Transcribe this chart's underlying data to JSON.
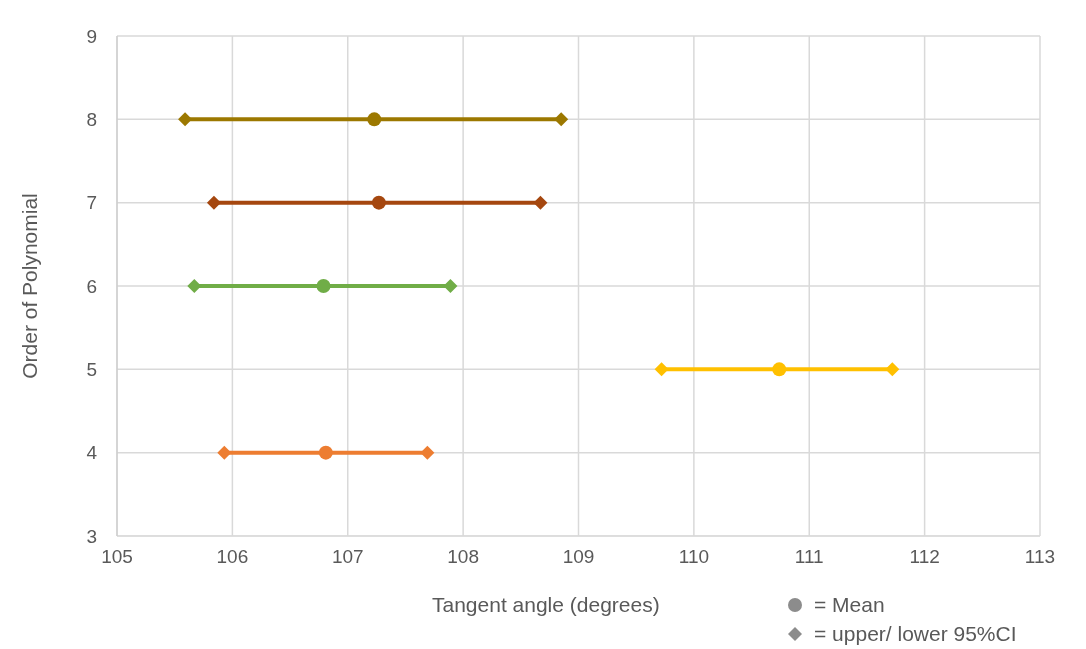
{
  "chart_data": {
    "type": "line",
    "xlabel": "Tangent angle (degrees)",
    "ylabel": "Order of Polynomial",
    "xlim": [
      105,
      113
    ],
    "xticks": [
      105,
      106,
      107,
      108,
      109,
      110,
      111,
      112,
      113
    ],
    "ylim": [
      3,
      9
    ],
    "yticks": [
      3,
      4,
      5,
      6,
      7,
      8,
      9
    ],
    "grid": true,
    "marker": "diamond",
    "series": [
      {
        "color": "#9c7800",
        "x": [
          105.59,
          108.85
        ],
        "values": [
          8,
          8
        ]
      },
      {
        "color": "#a5470f",
        "x": [
          105.84,
          108.67
        ],
        "values": [
          7,
          7
        ]
      },
      {
        "color": "#70ad47",
        "x": [
          105.67,
          107.89
        ],
        "values": [
          6,
          6
        ]
      },
      {
        "color": "#ffc000",
        "x": [
          109.72,
          111.72
        ],
        "values": [
          5,
          5
        ]
      },
      {
        "color": "#ed7d31",
        "x": [
          105.93,
          107.69
        ],
        "values": [
          4,
          4
        ]
      },
      {
        "type": "scatter",
        "marker": "circle",
        "color": "#9c7800",
        "x": [
          107.23
        ],
        "values": [
          8
        ]
      },
      {
        "type": "scatter",
        "marker": "circle",
        "color": "#a5470f",
        "x": [
          107.27
        ],
        "values": [
          7
        ]
      },
      {
        "type": "scatter",
        "marker": "circle",
        "color": "#70ad47",
        "x": [
          106.79
        ],
        "values": [
          6
        ]
      },
      {
        "type": "scatter",
        "marker": "circle",
        "color": "#ffc000",
        "x": [
          110.74
        ],
        "values": [
          5
        ]
      },
      {
        "type": "scatter",
        "marker": "circle",
        "color": "#ed7d31",
        "x": [
          106.81
        ],
        "values": [
          4
        ]
      }
    ],
    "annotations": [
      "= Mean",
      "= upper/ lower 95%CI"
    ]
  }
}
